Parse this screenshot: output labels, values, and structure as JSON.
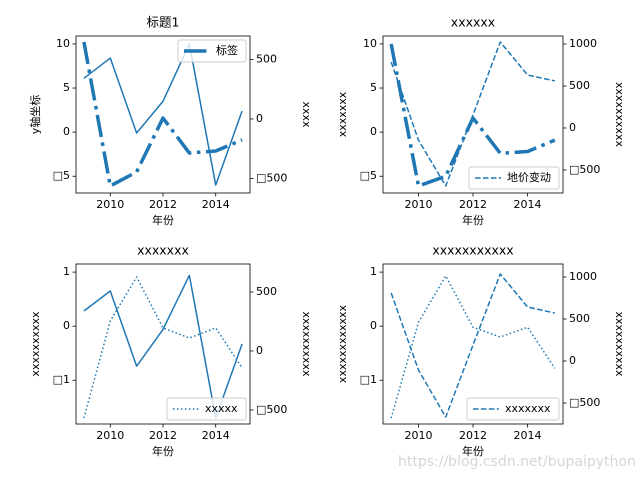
{
  "chart_data": [
    {
      "type": "line",
      "title": "标题1",
      "xlabel": "年份",
      "ylabel": "y轴坐标",
      "y2label": "xxxx",
      "x": [
        2009,
        2010,
        2011,
        2012,
        2013,
        2014,
        2015
      ],
      "xlim": [
        2008.7,
        2015.3
      ],
      "xticks": [
        2010,
        2012,
        2014
      ],
      "ylim": [
        -6.9,
        10.9
      ],
      "yticks": [
        {
          "value": -5,
          "label": "□5"
        },
        0,
        5,
        10
      ],
      "y2lim": [
        -622,
        697
      ],
      "y2ticks": [
        {
          "value": -500,
          "label": "□500"
        },
        0,
        500
      ],
      "legend": "upper right",
      "series": [
        {
          "color": "#1f77b4",
          "style": "solid",
          "width": 1.5,
          "axis": "y",
          "values": [
            6.1,
            8.4,
            -0.1,
            3.5,
            10.0,
            -6.0,
            2.4
          ]
        },
        {
          "name": "标签",
          "color": "#1f77b4",
          "style": "dashdot",
          "width": 3.5,
          "axis": "y2",
          "values": [
            647,
            -563,
            -445,
            8,
            -286,
            -269,
            -176
          ]
        }
      ]
    },
    {
      "type": "line",
      "title": "xxxxxx",
      "xlabel": "年份",
      "ylabel": "xxxxxxx",
      "y2label": "xxxxxxxxxx",
      "x": [
        2009,
        2010,
        2011,
        2012,
        2013,
        2014,
        2015
      ],
      "xlim": [
        2008.7,
        2015.3
      ],
      "xticks": [
        2010,
        2012,
        2014
      ],
      "ylim": [
        -6.9,
        10.9
      ],
      "yticks": [
        {
          "value": -5,
          "label": "□5"
        },
        0,
        5,
        10
      ],
      "y2lim": [
        -774,
        1095
      ],
      "y2ticks": [
        {
          "value": -500,
          "label": "□500"
        },
        0,
        500,
        1000
      ],
      "legend": "lower right",
      "series": [
        {
          "color": "#1f77b4",
          "style": "dashdot",
          "width": 3.5,
          "axis": "y",
          "values": [
            10.0,
            -6.1,
            -5.0,
            1.6,
            -2.4,
            -2.2,
            -0.9
          ]
        },
        {
          "name": "地价变动",
          "color": "#1f77b4",
          "style": "dashed",
          "width": 1.5,
          "axis": "y2",
          "values": [
            786,
            -143,
            -690,
            155,
            1024,
            631,
            560
          ]
        }
      ]
    },
    {
      "type": "line",
      "title": "xxxxxxx",
      "xlabel": "年份",
      "ylabel": "xxxxxxxxxx",
      "y2label": "xxxxxxxxxx",
      "x": [
        2009,
        2010,
        2011,
        2012,
        2013,
        2014,
        2015
      ],
      "xlim": [
        2008.7,
        2015.3
      ],
      "xticks": [
        2010,
        2012,
        2014
      ],
      "ylim": [
        -1.81,
        1.15
      ],
      "yticks": [
        {
          "value": -1,
          "label": "□1"
        },
        0,
        1
      ],
      "y2lim": [
        -619,
        737
      ],
      "y2ticks": [
        {
          "value": -500,
          "label": "□500"
        },
        0,
        500
      ],
      "legend": "lower right",
      "series": [
        {
          "color": "#1f77b4",
          "style": "solid",
          "width": 1.5,
          "axis": "y",
          "values": [
            0.28,
            0.65,
            -0.74,
            -0.06,
            0.94,
            -1.7,
            -0.33
          ]
        },
        {
          "name": "xxxxx",
          "color": "#1f77b4",
          "style": "dotted",
          "width": 1.5,
          "axis": "y2",
          "values": [
            -568,
            254,
            627,
            195,
            110,
            195,
            -144
          ]
        }
      ]
    },
    {
      "type": "line",
      "title": "xxxxxxxxxxx",
      "xlabel": "年份",
      "ylabel": "xxxxxxxxxxxx",
      "y2label": "xxxxxxxxxx",
      "x": [
        2009,
        2010,
        2011,
        2012,
        2013,
        2014,
        2015
      ],
      "xlim": [
        2008.7,
        2015.3
      ],
      "xticks": [
        2010,
        2012,
        2014
      ],
      "ylim": [
        -1.81,
        1.15
      ],
      "yticks": [
        {
          "value": -1,
          "label": "□1"
        },
        0,
        1
      ],
      "y2lim": [
        -750,
        1155
      ],
      "y2ticks": [
        {
          "value": -500,
          "label": "□500"
        },
        0,
        500,
        1000
      ],
      "legend": "lower right",
      "series": [
        {
          "color": "#1f77b4",
          "style": "dotted",
          "width": 1.5,
          "axis": "y",
          "values": [
            -1.7,
            0.07,
            0.93,
            -0.02,
            -0.2,
            -0.02,
            -0.78
          ]
        },
        {
          "name": "xxxxxxx",
          "color": "#1f77b4",
          "style": "dashed",
          "width": 1.5,
          "axis": "y2",
          "values": [
            810,
            -107,
            -667,
            190,
            1036,
            643,
            571
          ]
        }
      ]
    }
  ],
  "watermark": "https://blog.csdn.net/bupaipython"
}
